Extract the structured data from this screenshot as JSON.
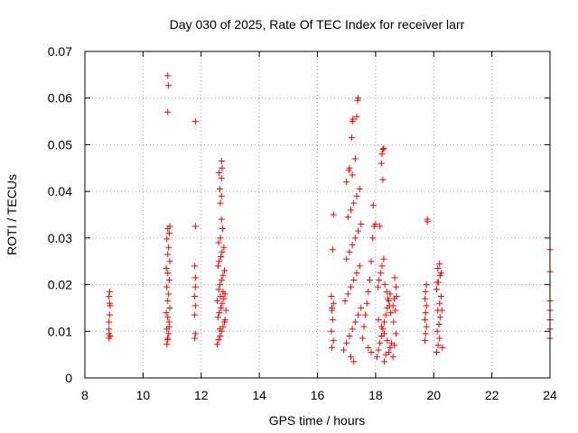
{
  "chart_data": {
    "type": "scatter",
    "title": "Day 030 of 2025, Rate Of TEC Index for receiver larr",
    "xlabel": "GPS time / hours",
    "ylabel": "ROTI / TECUs",
    "xlim": [
      8,
      24
    ],
    "ylim": [
      0,
      0.07
    ],
    "xticks": [
      8,
      10,
      12,
      14,
      16,
      18,
      20,
      22,
      24
    ],
    "yticks": [
      0,
      0.01,
      0.02,
      0.03,
      0.04,
      0.05,
      0.06,
      0.07
    ],
    "xtick_labels": [
      "8",
      "10",
      "12",
      "14",
      "16",
      "18",
      "20",
      "22",
      "24"
    ],
    "ytick_labels": [
      "0",
      "0.01",
      "0.02",
      "0.03",
      "0.04",
      "0.05",
      "0.06",
      "0.07"
    ],
    "grid": true,
    "marker": "+",
    "color": "#ff0000",
    "series": [
      {
        "name": "ROTI",
        "points": [
          [
            8.83,
            0.0085
          ],
          [
            8.83,
            0.0095
          ],
          [
            8.83,
            0.0105
          ],
          [
            8.83,
            0.012
          ],
          [
            8.85,
            0.0135
          ],
          [
            8.87,
            0.0155
          ],
          [
            8.85,
            0.016
          ],
          [
            8.83,
            0.0175
          ],
          [
            8.85,
            0.0185
          ],
          [
            8.87,
            0.009
          ],
          [
            10.82,
            0.0072
          ],
          [
            10.85,
            0.0082
          ],
          [
            10.88,
            0.0095
          ],
          [
            10.82,
            0.0105
          ],
          [
            10.9,
            0.012
          ],
          [
            10.85,
            0.013
          ],
          [
            10.8,
            0.014
          ],
          [
            10.92,
            0.015
          ],
          [
            10.85,
            0.0165
          ],
          [
            10.88,
            0.018
          ],
          [
            10.82,
            0.0195
          ],
          [
            10.9,
            0.021
          ],
          [
            10.85,
            0.0225
          ],
          [
            10.8,
            0.0235
          ],
          [
            10.92,
            0.025
          ],
          [
            10.85,
            0.0265
          ],
          [
            10.88,
            0.028
          ],
          [
            10.82,
            0.0298
          ],
          [
            10.9,
            0.031
          ],
          [
            10.85,
            0.032
          ],
          [
            10.92,
            0.0325
          ],
          [
            10.85,
            0.057
          ],
          [
            10.87,
            0.0627
          ],
          [
            10.85,
            0.0648
          ],
          [
            10.9,
            0.011
          ],
          [
            10.84,
            0.0085
          ],
          [
            11.78,
            0.0085
          ],
          [
            11.8,
            0.0095
          ],
          [
            11.78,
            0.0135
          ],
          [
            11.8,
            0.0155
          ],
          [
            11.78,
            0.0175
          ],
          [
            11.8,
            0.0195
          ],
          [
            11.8,
            0.0215
          ],
          [
            11.78,
            0.024
          ],
          [
            11.8,
            0.0325
          ],
          [
            11.8,
            0.055
          ],
          [
            12.55,
            0.0072
          ],
          [
            12.6,
            0.0082
          ],
          [
            12.65,
            0.009
          ],
          [
            12.7,
            0.01
          ],
          [
            12.75,
            0.011
          ],
          [
            12.8,
            0.012
          ],
          [
            12.58,
            0.013
          ],
          [
            12.62,
            0.014
          ],
          [
            12.68,
            0.015
          ],
          [
            12.72,
            0.016
          ],
          [
            12.78,
            0.017
          ],
          [
            12.82,
            0.018
          ],
          [
            12.6,
            0.019
          ],
          [
            12.65,
            0.02
          ],
          [
            12.7,
            0.021
          ],
          [
            12.75,
            0.022
          ],
          [
            12.8,
            0.023
          ],
          [
            12.58,
            0.024
          ],
          [
            12.62,
            0.025
          ],
          [
            12.68,
            0.026
          ],
          [
            12.72,
            0.027
          ],
          [
            12.78,
            0.028
          ],
          [
            12.6,
            0.029
          ],
          [
            12.66,
            0.03
          ],
          [
            12.74,
            0.032
          ],
          [
            12.7,
            0.034
          ],
          [
            12.66,
            0.0375
          ],
          [
            12.7,
            0.039
          ],
          [
            12.64,
            0.0405
          ],
          [
            12.62,
            0.044
          ],
          [
            12.7,
            0.0428
          ],
          [
            12.72,
            0.045
          ],
          [
            12.7,
            0.0465
          ],
          [
            12.75,
            0.0185
          ],
          [
            12.55,
            0.0165
          ],
          [
            12.85,
            0.0145
          ],
          [
            12.82,
            0.0125
          ],
          [
            12.66,
            0.0175
          ],
          [
            12.64,
            0.0105
          ],
          [
            16.5,
            0.0065
          ],
          [
            16.55,
            0.008
          ],
          [
            16.48,
            0.01
          ],
          [
            16.52,
            0.0125
          ],
          [
            16.5,
            0.0145
          ],
          [
            16.55,
            0.016
          ],
          [
            16.48,
            0.0175
          ],
          [
            16.52,
            0.0275
          ],
          [
            16.55,
            0.035
          ],
          [
            16.5,
            0.015
          ],
          [
            16.9,
            0.006
          ],
          [
            17.0,
            0.0075
          ],
          [
            17.1,
            0.009
          ],
          [
            17.2,
            0.0105
          ],
          [
            17.3,
            0.012
          ],
          [
            17.4,
            0.0135
          ],
          [
            17.5,
            0.015
          ],
          [
            16.95,
            0.0165
          ],
          [
            17.05,
            0.018
          ],
          [
            17.15,
            0.0195
          ],
          [
            17.25,
            0.021
          ],
          [
            17.35,
            0.0225
          ],
          [
            17.45,
            0.024
          ],
          [
            17.0,
            0.0255
          ],
          [
            17.1,
            0.027
          ],
          [
            17.2,
            0.0285
          ],
          [
            17.3,
            0.03
          ],
          [
            17.4,
            0.0315
          ],
          [
            17.5,
            0.033
          ],
          [
            17.05,
            0.0345
          ],
          [
            17.15,
            0.036
          ],
          [
            17.25,
            0.0375
          ],
          [
            17.35,
            0.039
          ],
          [
            17.45,
            0.0405
          ],
          [
            17.0,
            0.042
          ],
          [
            17.2,
            0.0435
          ],
          [
            17.08,
            0.0445
          ],
          [
            17.1,
            0.045
          ],
          [
            17.3,
            0.047
          ],
          [
            17.18,
            0.0515
          ],
          [
            17.2,
            0.055
          ],
          [
            17.22,
            0.0555
          ],
          [
            17.35,
            0.056
          ],
          [
            17.38,
            0.0595
          ],
          [
            17.4,
            0.06
          ],
          [
            17.15,
            0.0045
          ],
          [
            17.25,
            0.0035
          ],
          [
            17.55,
            0.0085
          ],
          [
            17.6,
            0.011
          ],
          [
            17.65,
            0.0135
          ],
          [
            17.7,
            0.016
          ],
          [
            17.75,
            0.0185
          ],
          [
            17.8,
            0.021
          ],
          [
            17.85,
            0.025
          ],
          [
            17.9,
            0.03
          ],
          [
            17.95,
            0.0325
          ],
          [
            18.0,
            0.033
          ],
          [
            17.92,
            0.037
          ],
          [
            17.75,
            0.0065
          ],
          [
            17.85,
            0.0055
          ],
          [
            18.05,
            0.0045
          ],
          [
            18.1,
            0.006
          ],
          [
            18.15,
            0.0075
          ],
          [
            18.2,
            0.009
          ],
          [
            18.25,
            0.0105
          ],
          [
            18.3,
            0.012
          ],
          [
            18.35,
            0.0135
          ],
          [
            18.4,
            0.015
          ],
          [
            18.45,
            0.0165
          ],
          [
            18.5,
            0.018
          ],
          [
            18.08,
            0.0195
          ],
          [
            18.12,
            0.021
          ],
          [
            18.18,
            0.0225
          ],
          [
            18.22,
            0.024
          ],
          [
            18.28,
            0.0255
          ],
          [
            18.32,
            0.02
          ],
          [
            18.38,
            0.0185
          ],
          [
            18.42,
            0.017
          ],
          [
            18.48,
            0.0155
          ],
          [
            18.52,
            0.014
          ],
          [
            18.1,
            0.0125
          ],
          [
            18.2,
            0.011
          ],
          [
            18.3,
            0.0095
          ],
          [
            18.4,
            0.008
          ],
          [
            18.5,
            0.0065
          ],
          [
            18.15,
            0.0325
          ],
          [
            18.25,
            0.0425
          ],
          [
            18.2,
            0.046
          ],
          [
            18.22,
            0.048
          ],
          [
            18.25,
            0.049
          ],
          [
            18.28,
            0.0492
          ],
          [
            18.3,
            0.0035
          ],
          [
            18.35,
            0.005
          ],
          [
            18.45,
            0.0055
          ],
          [
            18.55,
            0.0075
          ],
          [
            18.6,
            0.0045
          ],
          [
            18.65,
            0.007
          ],
          [
            18.7,
            0.0095
          ],
          [
            18.62,
            0.012
          ],
          [
            18.68,
            0.0145
          ],
          [
            18.64,
            0.017
          ],
          [
            18.7,
            0.0195
          ],
          [
            18.66,
            0.0215
          ],
          [
            18.72,
            0.0175
          ],
          [
            18.6,
            0.0155
          ],
          [
            19.7,
            0.008
          ],
          [
            19.72,
            0.0095
          ],
          [
            19.75,
            0.011
          ],
          [
            19.7,
            0.0125
          ],
          [
            19.72,
            0.014
          ],
          [
            19.75,
            0.0155
          ],
          [
            19.7,
            0.017
          ],
          [
            19.72,
            0.0185
          ],
          [
            19.75,
            0.02
          ],
          [
            19.78,
            0.0335
          ],
          [
            19.78,
            0.034
          ],
          [
            20.1,
            0.0055
          ],
          [
            20.15,
            0.007
          ],
          [
            20.2,
            0.0085
          ],
          [
            20.12,
            0.01
          ],
          [
            20.18,
            0.0115
          ],
          [
            20.22,
            0.013
          ],
          [
            20.14,
            0.0145
          ],
          [
            20.2,
            0.016
          ],
          [
            20.25,
            0.0175
          ],
          [
            20.1,
            0.019
          ],
          [
            20.16,
            0.0205
          ],
          [
            20.22,
            0.022
          ],
          [
            20.14,
            0.0235
          ],
          [
            20.2,
            0.0245
          ],
          [
            20.25,
            0.0225
          ],
          [
            20.3,
            0.0065
          ],
          [
            20.28,
            0.0145
          ],
          [
            20.12,
            0.0205
          ],
          [
            24.0,
            0.0085
          ],
          [
            24.0,
            0.0105
          ],
          [
            24.0,
            0.0125
          ],
          [
            24.0,
            0.0145
          ],
          [
            24.0,
            0.0165
          ],
          [
            24.0,
            0.0228
          ],
          [
            24.0,
            0.0275
          ]
        ]
      }
    ]
  }
}
